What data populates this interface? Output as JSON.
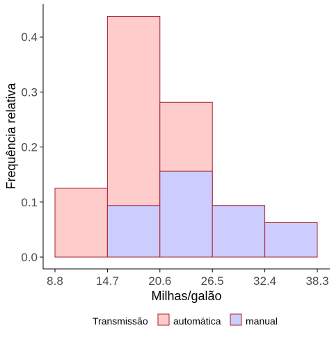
{
  "chart_data": {
    "type": "bar",
    "subtype": "overlapping-histogram",
    "title": "",
    "xlabel": "Milhas/galão",
    "ylabel": "Frequência relativa",
    "bin_edges": [
      8.8,
      14.7,
      20.6,
      26.5,
      32.4,
      38.3
    ],
    "x_tick_labels": [
      "8.8",
      "14.7",
      "20.6",
      "26.5",
      "32.4",
      "38.3"
    ],
    "y_ticks": [
      0.0,
      0.1,
      0.2,
      0.3,
      0.4
    ],
    "y_tick_labels": [
      "0.0",
      "0.1",
      "0.2",
      "0.3",
      "0.4"
    ],
    "xlim": [
      8.8,
      38.3
    ],
    "ylim": [
      0,
      0.46
    ],
    "grid": false,
    "legend_title": "Transmissão",
    "legend_position": "bottom",
    "series": [
      {
        "name": "automática",
        "fill": "#ffcccc",
        "stroke": "#a4202e",
        "values": [
          0.125,
          0.4375,
          0.28125,
          null,
          null
        ]
      },
      {
        "name": "manual",
        "fill": "#ccccff",
        "stroke": "#a4202e",
        "values": [
          null,
          0.09375,
          0.15625,
          0.09375,
          0.0625
        ]
      }
    ]
  }
}
